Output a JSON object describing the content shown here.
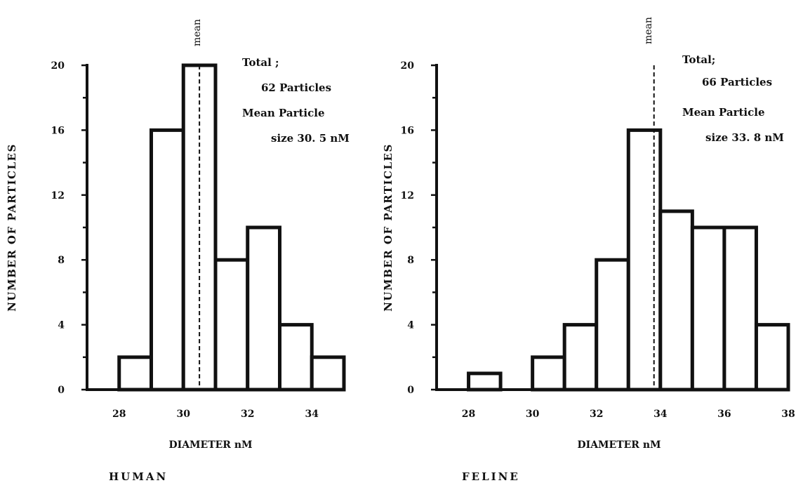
{
  "chart_data": [
    {
      "type": "bar",
      "panel_label": "HUMAN",
      "xlabel": "DIAMETER nM",
      "ylabel": "NUMBER OF PARTICLES",
      "ylim": [
        0,
        20
      ],
      "xlim": [
        27,
        35
      ],
      "yticks": [
        0,
        4,
        8,
        12,
        16,
        20
      ],
      "xticks": [
        28,
        30,
        32,
        34
      ],
      "bins": [
        {
          "x0": 28,
          "x1": 29,
          "count": 2
        },
        {
          "x0": 29,
          "x1": 30,
          "count": 16
        },
        {
          "x0": 30,
          "x1": 31,
          "count": 20
        },
        {
          "x0": 31,
          "x1": 32,
          "count": 8
        },
        {
          "x0": 32,
          "x1": 33,
          "count": 10
        },
        {
          "x0": 33,
          "x1": 34,
          "count": 4
        },
        {
          "x0": 34,
          "x1": 35,
          "count": 2
        }
      ],
      "mean_value": 30.5,
      "mean_label": "mean",
      "annotations": [
        "Total ;",
        "62  Particles",
        "Mean  Particle",
        "size  30. 5 nM"
      ]
    },
    {
      "type": "bar",
      "panel_label": "FELINE",
      "xlabel": "DIAMETER  nM",
      "ylabel": "NUMBER  OF  PARTICLES",
      "ylim": [
        0,
        20
      ],
      "xlim": [
        27,
        38
      ],
      "yticks": [
        0,
        4,
        8,
        12,
        16,
        20
      ],
      "xticks": [
        28,
        30,
        32,
        34,
        36,
        38
      ],
      "bins": [
        {
          "x0": 28,
          "x1": 29,
          "count": 1
        },
        {
          "x0": 30,
          "x1": 31,
          "count": 2
        },
        {
          "x0": 31,
          "x1": 32,
          "count": 4
        },
        {
          "x0": 32,
          "x1": 33,
          "count": 8
        },
        {
          "x0": 33,
          "x1": 34,
          "count": 16
        },
        {
          "x0": 34,
          "x1": 35,
          "count": 11
        },
        {
          "x0": 35,
          "x1": 36,
          "count": 10
        },
        {
          "x0": 36,
          "x1": 37,
          "count": 10
        },
        {
          "x0": 37,
          "x1": 38,
          "count": 4
        }
      ],
      "mean_value": 33.8,
      "mean_label": "mean",
      "annotations": [
        "Total;",
        "66  Particles",
        "Mean  Particle",
        "size  33. 8 nM"
      ]
    }
  ]
}
